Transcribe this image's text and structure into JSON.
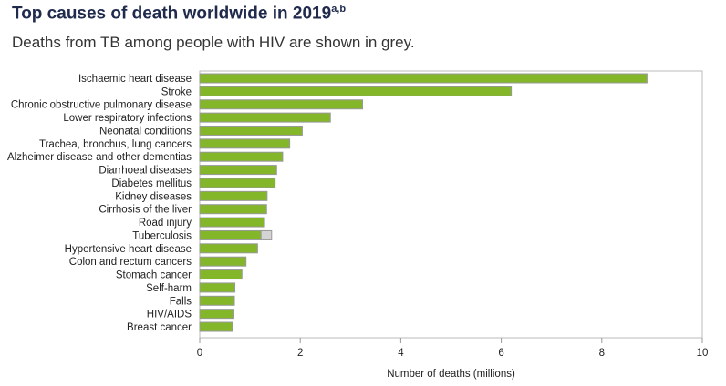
{
  "title": "Top causes of death worldwide in 2019",
  "title_superscript": "a,b",
  "subtitle": "Deaths from TB among people with HIV are shown in grey.",
  "colors": {
    "main": "#84b62a",
    "tb_hiv": "#d4d4d4",
    "bar_border": "#999999",
    "title": "#1f2a4d"
  },
  "chart_data": {
    "type": "bar",
    "orientation": "horizontal",
    "stacked": true,
    "categories": [
      "Ischaemic heart disease",
      "Stroke",
      "Chronic obstructive pulmonary disease",
      "Lower respiratory infections",
      "Neonatal conditions",
      "Trachea, bronchus, lung cancers",
      "Alzheimer disease and other dementias",
      "Diarrhoeal diseases",
      "Diabetes mellitus",
      "Kidney diseases",
      "Cirrhosis of the liver",
      "Road injury",
      "Tuberculosis",
      "Hypertensive heart disease",
      "Colon and rectum cancers",
      "Stomach cancer",
      "Self-harm",
      "Falls",
      "HIV/AIDS",
      "Breast cancer"
    ],
    "series": [
      {
        "values": [
          8.9,
          6.2,
          3.24,
          2.6,
          2.04,
          1.79,
          1.65,
          1.53,
          1.5,
          1.34,
          1.33,
          1.29,
          1.22,
          1.15,
          0.92,
          0.84,
          0.7,
          0.69,
          0.68,
          0.65
        ]
      },
      {
        "values": [
          0,
          0,
          0,
          0,
          0,
          0,
          0,
          0,
          0,
          0,
          0,
          0,
          0.21,
          0,
          0,
          0,
          0,
          0,
          0,
          0
        ]
      }
    ],
    "xlabel": "Number of deaths (millions)",
    "xlim": [
      0,
      10
    ],
    "xticks": [
      0,
      2,
      4,
      6,
      8,
      10
    ],
    "grid": false
  }
}
